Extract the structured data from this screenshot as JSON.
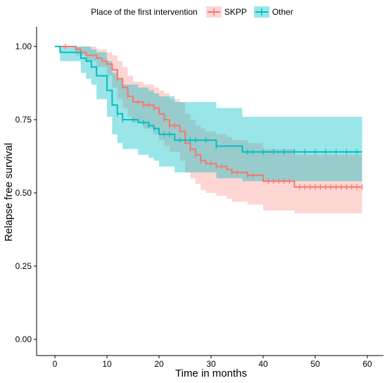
{
  "legend": {
    "title": "Place of the first intervention",
    "items": [
      {
        "name": "SKPP",
        "color": "#F8766D",
        "fill": "#F8766D"
      },
      {
        "name": "Other",
        "color": "#00BFC4",
        "fill": "#00BFC4"
      }
    ]
  },
  "chart_data": {
    "type": "line",
    "title": "",
    "xlabel": "Time in months",
    "ylabel": "Relapse free survival",
    "xlim": [
      0,
      60
    ],
    "ylim": [
      0,
      1
    ],
    "x_ticks": [
      0,
      10,
      20,
      30,
      40,
      50,
      60
    ],
    "y_ticks": [
      0.0,
      0.25,
      0.5,
      0.75,
      1.0
    ],
    "x_tick_labels": [
      "0",
      "10",
      "20",
      "30",
      "40",
      "50",
      "60"
    ],
    "y_tick_labels": [
      "0.00",
      "0.25",
      "0.50",
      "0.75",
      "1.00"
    ],
    "grid": false,
    "legend_position": "top",
    "series": [
      {
        "name": "SKPP",
        "color": "#F8766D",
        "steps": [
          [
            0,
            1.0
          ],
          [
            4,
            0.99
          ],
          [
            5,
            0.98
          ],
          [
            6,
            0.97
          ],
          [
            8,
            0.96
          ],
          [
            9,
            0.95
          ],
          [
            10,
            0.94
          ],
          [
            11,
            0.92
          ],
          [
            12,
            0.89
          ],
          [
            13,
            0.86
          ],
          [
            14,
            0.83
          ],
          [
            15,
            0.81
          ],
          [
            17,
            0.8
          ],
          [
            19,
            0.79
          ],
          [
            20,
            0.77
          ],
          [
            21,
            0.75
          ],
          [
            22,
            0.73
          ],
          [
            24,
            0.71
          ],
          [
            25,
            0.67
          ],
          [
            26,
            0.65
          ],
          [
            27,
            0.63
          ],
          [
            28,
            0.61
          ],
          [
            29,
            0.6
          ],
          [
            31,
            0.59
          ],
          [
            33,
            0.58
          ],
          [
            34,
            0.57
          ],
          [
            37,
            0.56
          ],
          [
            40,
            0.54
          ],
          [
            42,
            0.54
          ],
          [
            46,
            0.52
          ],
          [
            59,
            0.52
          ]
        ],
        "lower": [
          [
            0,
            1.0
          ],
          [
            4,
            0.97
          ],
          [
            6,
            0.95
          ],
          [
            8,
            0.93
          ],
          [
            10,
            0.9
          ],
          [
            11,
            0.86
          ],
          [
            12,
            0.82
          ],
          [
            13,
            0.79
          ],
          [
            14,
            0.76
          ],
          [
            15,
            0.74
          ],
          [
            17,
            0.72
          ],
          [
            19,
            0.7
          ],
          [
            20,
            0.68
          ],
          [
            21,
            0.66
          ],
          [
            22,
            0.64
          ],
          [
            24,
            0.61
          ],
          [
            25,
            0.57
          ],
          [
            26,
            0.55
          ],
          [
            27,
            0.53
          ],
          [
            28,
            0.51
          ],
          [
            29,
            0.5
          ],
          [
            31,
            0.49
          ],
          [
            33,
            0.48
          ],
          [
            34,
            0.47
          ],
          [
            37,
            0.46
          ],
          [
            40,
            0.44
          ],
          [
            42,
            0.44
          ],
          [
            46,
            0.43
          ],
          [
            59,
            0.43
          ]
        ],
        "upper": [
          [
            0,
            1.0
          ],
          [
            4,
            1.0
          ],
          [
            6,
            1.0
          ],
          [
            8,
            0.99
          ],
          [
            10,
            0.98
          ],
          [
            11,
            0.97
          ],
          [
            12,
            0.95
          ],
          [
            13,
            0.93
          ],
          [
            14,
            0.9
          ],
          [
            15,
            0.88
          ],
          [
            17,
            0.87
          ],
          [
            19,
            0.86
          ],
          [
            20,
            0.85
          ],
          [
            21,
            0.84
          ],
          [
            22,
            0.82
          ],
          [
            24,
            0.81
          ],
          [
            25,
            0.77
          ],
          [
            26,
            0.75
          ],
          [
            27,
            0.73
          ],
          [
            28,
            0.72
          ],
          [
            29,
            0.71
          ],
          [
            31,
            0.7
          ],
          [
            33,
            0.69
          ],
          [
            34,
            0.68
          ],
          [
            37,
            0.67
          ],
          [
            40,
            0.65
          ],
          [
            42,
            0.65
          ],
          [
            46,
            0.63
          ],
          [
            59,
            0.63
          ]
        ],
        "censor_x": [
          2,
          12,
          14,
          16,
          17,
          18,
          19,
          21,
          22,
          23,
          26,
          27,
          28,
          30,
          31,
          32,
          34,
          35,
          37,
          38,
          41,
          42,
          43,
          44,
          45,
          47,
          48,
          49,
          50,
          51,
          52,
          53,
          54,
          55,
          56,
          57,
          58,
          59
        ]
      },
      {
        "name": "Other",
        "color": "#00BFC4",
        "steps": [
          [
            0,
            1.0
          ],
          [
            1,
            0.98
          ],
          [
            5,
            0.96
          ],
          [
            6,
            0.95
          ],
          [
            7,
            0.93
          ],
          [
            8,
            0.9
          ],
          [
            10,
            0.85
          ],
          [
            11,
            0.8
          ],
          [
            12,
            0.77
          ],
          [
            13,
            0.75
          ],
          [
            16,
            0.74
          ],
          [
            18,
            0.73
          ],
          [
            19,
            0.72
          ],
          [
            20,
            0.7
          ],
          [
            23,
            0.68
          ],
          [
            25,
            0.68
          ],
          [
            31,
            0.66
          ],
          [
            36,
            0.64
          ],
          [
            59,
            0.64
          ]
        ],
        "lower": [
          [
            0,
            1.0
          ],
          [
            1,
            0.95
          ],
          [
            5,
            0.91
          ],
          [
            6,
            0.89
          ],
          [
            7,
            0.87
          ],
          [
            8,
            0.82
          ],
          [
            10,
            0.76
          ],
          [
            11,
            0.7
          ],
          [
            12,
            0.67
          ],
          [
            13,
            0.65
          ],
          [
            16,
            0.63
          ],
          [
            18,
            0.62
          ],
          [
            19,
            0.61
          ],
          [
            20,
            0.59
          ],
          [
            23,
            0.57
          ],
          [
            25,
            0.57
          ],
          [
            31,
            0.55
          ],
          [
            36,
            0.54
          ],
          [
            59,
            0.54
          ]
        ],
        "upper": [
          [
            0,
            1.0
          ],
          [
            1,
            1.0
          ],
          [
            5,
            1.0
          ],
          [
            6,
            1.0
          ],
          [
            7,
            0.99
          ],
          [
            8,
            0.98
          ],
          [
            10,
            0.95
          ],
          [
            11,
            0.91
          ],
          [
            12,
            0.89
          ],
          [
            13,
            0.87
          ],
          [
            16,
            0.86
          ],
          [
            18,
            0.85
          ],
          [
            19,
            0.84
          ],
          [
            20,
            0.83
          ],
          [
            23,
            0.81
          ],
          [
            25,
            0.81
          ],
          [
            31,
            0.79
          ],
          [
            36,
            0.76
          ],
          [
            59,
            0.76
          ]
        ],
        "censor_x": [
          12,
          13,
          15,
          17,
          18,
          19,
          21,
          22,
          24,
          26,
          27,
          29,
          31,
          37,
          38,
          40,
          42,
          44,
          46,
          48,
          50,
          52,
          54,
          56,
          58
        ]
      }
    ]
  }
}
